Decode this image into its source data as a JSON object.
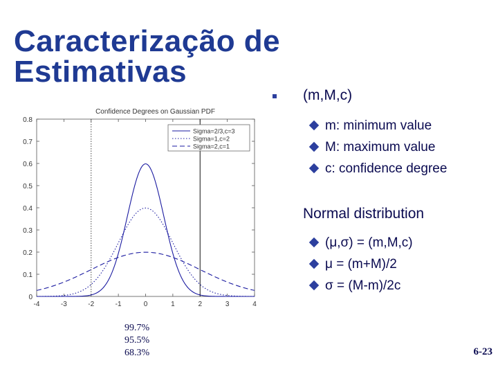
{
  "slide": {
    "title_line1": "Caracterização de",
    "title_line2": "Estimativas",
    "page_number": "6-23"
  },
  "bullets": [
    {
      "text": "(m,M,c)",
      "sub": [
        "m: minimum value",
        "M: maximum value",
        "c: confidence degree"
      ]
    },
    {
      "text": "Normal distribution",
      "sub": [
        "(μ,σ) = (m,M,c)",
        "μ = (m+M)/2",
        "σ = (M-m)/2c"
      ]
    }
  ],
  "percentages": [
    "99.7%",
    "95.5%",
    "68.3%"
  ],
  "colors": {
    "title": "#1f3a93",
    "bullet": "#2c3f9e",
    "curve": "#1a1aa0"
  },
  "chart_data": {
    "type": "line",
    "title": "Confidence Degrees on Gaussian PDF",
    "xlim": [
      -4,
      4
    ],
    "ylim": [
      0,
      0.8
    ],
    "x_ticks": [
      "-4",
      "-3",
      "-2",
      "-1",
      "0",
      "1",
      "2",
      "3",
      "4"
    ],
    "y_ticks": [
      "0",
      "0.1",
      "0.2",
      "0.3",
      "0.4",
      "0.5",
      "0.6",
      "0.7",
      "0.8"
    ],
    "legend_position": "top-right",
    "vertical_lines": [
      -2,
      2
    ],
    "series": [
      {
        "name": "Sigma=2/3,c=3",
        "mu": 0,
        "sigma": 0.6667,
        "dash": "solid"
      },
      {
        "name": "Sigma=1,c=2",
        "mu": 0,
        "sigma": 1,
        "dash": "dotted"
      },
      {
        "name": "Sigma=2,c=1",
        "mu": 0,
        "sigma": 2,
        "dash": "dashed"
      }
    ]
  }
}
